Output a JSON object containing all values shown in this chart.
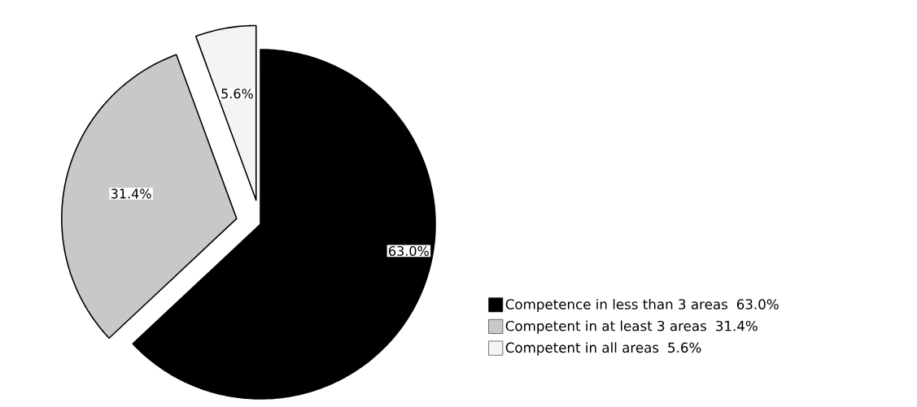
{
  "chart_data": {
    "type": "pie",
    "categories": [
      "Competence in less than 3 areas",
      "Competent in at least 3 areas",
      "Competent in all areas"
    ],
    "values": [
      63.0,
      31.4,
      5.6
    ],
    "value_labels": [
      "63.0%",
      "31.4%",
      "5.6%"
    ],
    "colors": [
      "#000000",
      "#c8c8c8",
      "#f4f4f4"
    ],
    "legend": "right"
  }
}
